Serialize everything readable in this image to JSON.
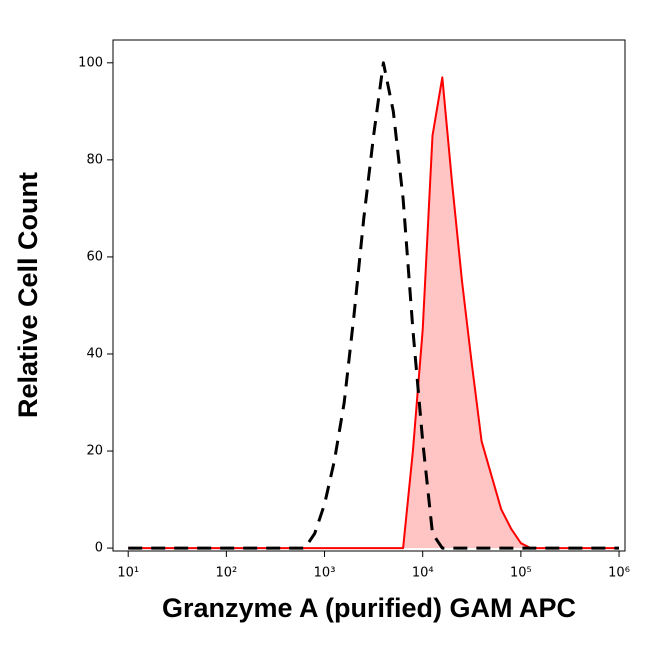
{
  "chart_data": {
    "type": "line",
    "x_label": "Granzyme A (purified) GAM APC",
    "y_label": "Relative Cell Count",
    "x": [
      10,
      100,
      501,
      631,
      794,
      1000,
      1259,
      1585,
      1995,
      2512,
      3162,
      3981,
      5012,
      6310,
      7943,
      10000,
      12589,
      15849,
      19953,
      25119,
      31623,
      39811,
      50119,
      63096,
      79433,
      100000,
      125893,
      158489,
      199526,
      1000000
    ],
    "series": [
      {
        "color": "#000000",
        "dashed": true,
        "fill": null,
        "values": [
          0,
          0,
          0,
          0,
          3,
          9,
          18,
          30,
          48,
          68,
          85,
          100,
          90,
          72,
          45,
          22,
          3,
          0,
          0,
          0,
          0,
          0,
          0,
          0,
          0,
          0,
          0,
          0,
          0,
          0
        ]
      },
      {
        "color": "#ff0000",
        "dashed": false,
        "fill": "#ffc4c4",
        "values": [
          0,
          0,
          0,
          0,
          0,
          0,
          0,
          0,
          0,
          0,
          0,
          0,
          0,
          0,
          20,
          45,
          85,
          97,
          75,
          55,
          38,
          22,
          15,
          8,
          4,
          1,
          0,
          0,
          0,
          0
        ]
      }
    ],
    "xscale": "log",
    "xlim": [
      7,
      1150000
    ],
    "xticks": [
      {
        "value": 10,
        "label": "10¹"
      },
      {
        "value": 100,
        "label": "10²"
      },
      {
        "value": 1000,
        "label": "10³"
      },
      {
        "value": 10000,
        "label": "10⁴"
      },
      {
        "value": 100000,
        "label": "10⁵"
      },
      {
        "value": 1000000,
        "label": "10⁶"
      }
    ],
    "ylim": [
      -0.6,
      104.7
    ],
    "yticks": [
      0,
      20,
      40,
      60,
      80,
      100
    ]
  }
}
